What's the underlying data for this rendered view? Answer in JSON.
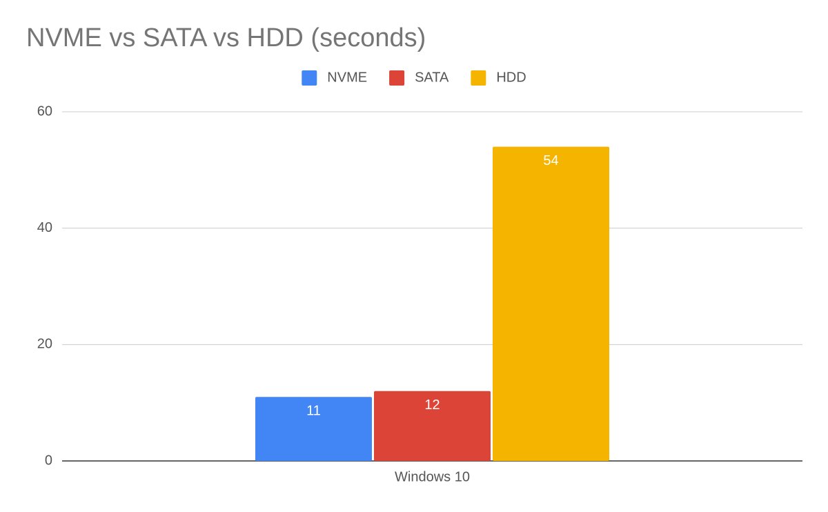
{
  "chart_data": {
    "type": "bar",
    "title": "NVME vs SATA vs HDD (seconds)",
    "categories": [
      "Windows 10"
    ],
    "series": [
      {
        "name": "NVME",
        "color": "#4285f4",
        "values": [
          11
        ]
      },
      {
        "name": "SATA",
        "color": "#db4437",
        "values": [
          12
        ]
      },
      {
        "name": "HDD",
        "color": "#f4b400",
        "values": [
          54
        ]
      }
    ],
    "ylim": [
      0,
      60
    ],
    "yticks": [
      0,
      20,
      40,
      60
    ],
    "grid": true,
    "legend": "top",
    "data_labels": true
  }
}
